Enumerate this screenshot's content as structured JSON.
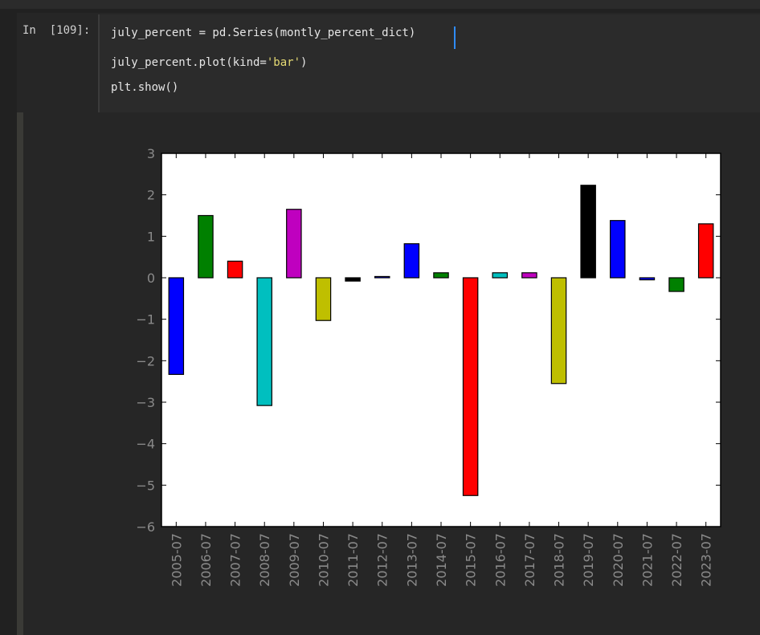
{
  "cell": {
    "prompt": "In  [109]:",
    "code": {
      "line1_a": "july_percent = pd.Series(",
      "line1_b": "montly_percent_dict",
      "line1_c": ")",
      "line2_a": "july_percent.plot(kind=",
      "line2_str": "'bar'",
      "line2_c": ")",
      "line3": "plt.show()"
    }
  },
  "colors": {
    "background": "#212121",
    "code_text": "#e6e6e6",
    "string": "#e6db74",
    "cursor": "#2f8cff"
  },
  "chart_data": {
    "type": "bar",
    "categories": [
      "2005-07",
      "2006-07",
      "2007-07",
      "2008-07",
      "2009-07",
      "2010-07",
      "2011-07",
      "2012-07",
      "2013-07",
      "2014-07",
      "2015-07",
      "2016-07",
      "2017-07",
      "2018-07",
      "2019-07",
      "2020-07",
      "2021-07",
      "2022-07",
      "2023-07"
    ],
    "values": [
      -2.33,
      1.5,
      0.4,
      -3.08,
      1.65,
      -1.03,
      -0.08,
      0.03,
      0.82,
      0.12,
      -5.25,
      0.12,
      0.12,
      -2.55,
      2.23,
      1.38,
      -0.05,
      -0.33,
      1.3
    ],
    "bar_colors": [
      "#0000ff",
      "#008000",
      "#ff0000",
      "#00bfbf",
      "#bf00bf",
      "#bfbf00",
      "#000000",
      "#0000ff",
      "#0000ff",
      "#008000",
      "#ff0000",
      "#00bfbf",
      "#bf00bf",
      "#bfbf00",
      "#000000",
      "#0000ff",
      "#0000ff",
      "#008000",
      "#ff0000"
    ],
    "yticks": [
      "3",
      "2",
      "1",
      "0",
      "−1",
      "−2",
      "−3",
      "−4",
      "−5",
      "−6"
    ],
    "ylim": [
      -6,
      3
    ],
    "title": "",
    "xlabel": "",
    "ylabel": "",
    "grid": false,
    "legend": "none"
  }
}
